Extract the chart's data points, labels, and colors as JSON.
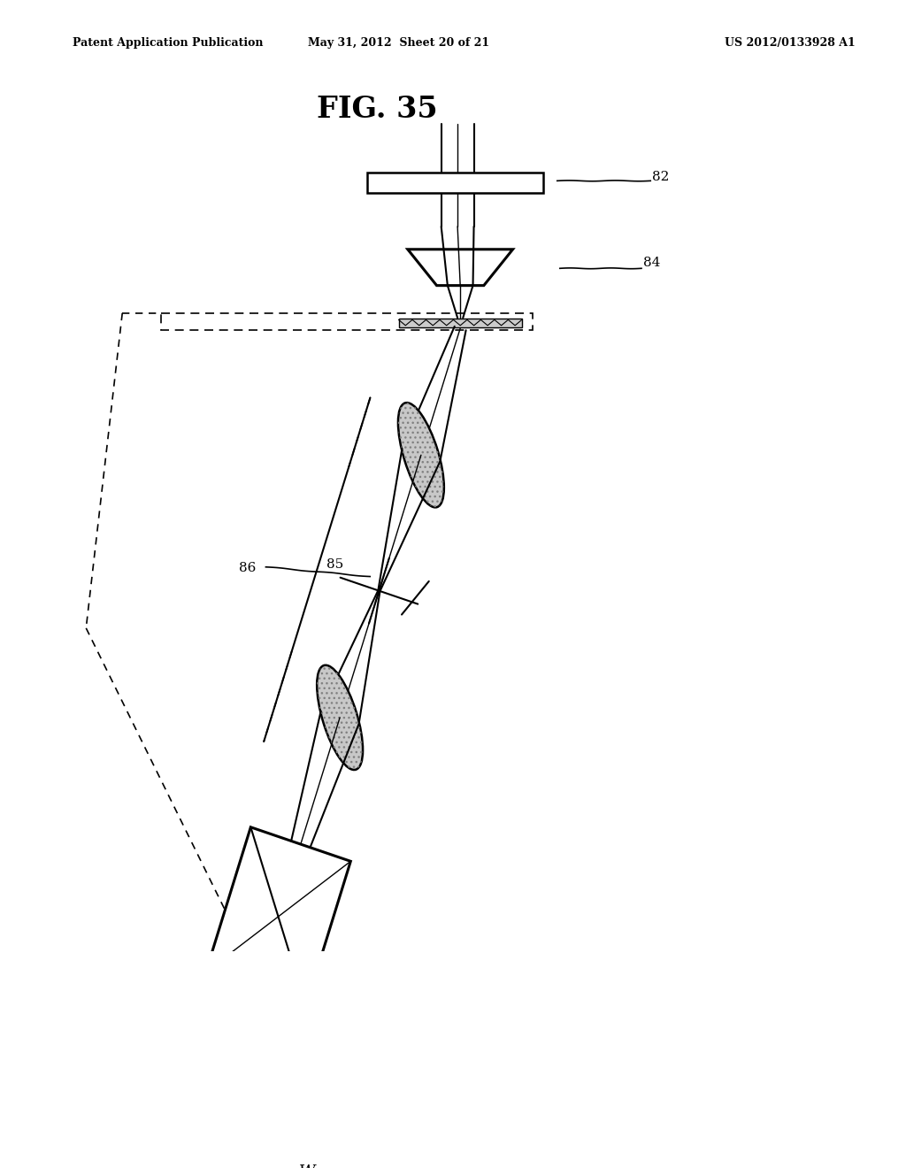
{
  "background_color": "#ffffff",
  "header_left": "Patent Application Publication",
  "header_center": "May 31, 2012  Sheet 20 of 21",
  "header_right": "US 2012/0133928 A1",
  "fig_title": "FIG. 35"
}
